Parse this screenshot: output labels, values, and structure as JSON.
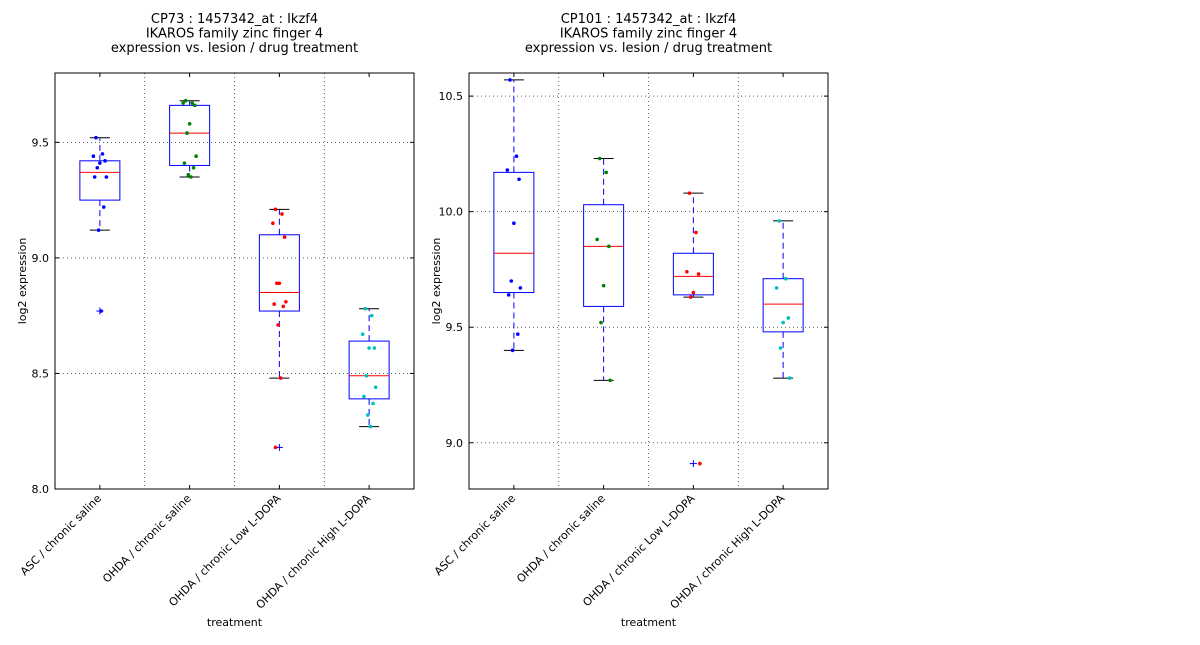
{
  "chart_data": [
    {
      "type": "box",
      "title": [
        "CP73 : 1457342_at : Ikzf4",
        "IKAROS family zinc finger 4",
        "expression vs. lesion / drug treatment"
      ],
      "xlabel": "treatment",
      "ylabel": "log2 expression",
      "ylim": [
        8.0,
        9.8
      ],
      "yticks": [
        "8.0",
        "8.5",
        "9.0",
        "9.5"
      ],
      "grid": true,
      "categories": [
        "ASC / chronic saline",
        "OHDA / chronic saline",
        "OHDA / chronic Low L-DOPA",
        "OHDA / chronic High L-DOPA"
      ],
      "colors": [
        "#0000ff",
        "#008000",
        "#ff0000",
        "#00bfbf"
      ],
      "boxes": [
        {
          "q1": 9.25,
          "median": 9.37,
          "q3": 9.42,
          "whisker_low": 9.12,
          "whisker_high": 9.52,
          "outliers": [
            8.77
          ],
          "points": [
            9.52,
            9.45,
            9.44,
            9.42,
            9.41,
            9.39,
            9.35,
            9.35,
            9.22,
            9.12,
            8.77
          ]
        },
        {
          "q1": 9.4,
          "median": 9.54,
          "q3": 9.66,
          "whisker_low": 9.35,
          "whisker_high": 9.68,
          "outliers": [],
          "points": [
            9.68,
            9.67,
            9.67,
            9.66,
            9.58,
            9.54,
            9.44,
            9.41,
            9.39,
            9.36,
            9.35
          ]
        },
        {
          "q1": 8.77,
          "median": 8.85,
          "q3": 9.1,
          "whisker_low": 8.48,
          "whisker_high": 9.21,
          "outliers": [
            8.18
          ],
          "points": [
            9.21,
            9.19,
            9.15,
            9.09,
            8.89,
            8.89,
            8.81,
            8.8,
            8.79,
            8.71,
            8.48,
            8.18
          ]
        },
        {
          "q1": 8.39,
          "median": 8.49,
          "q3": 8.64,
          "whisker_low": 8.27,
          "whisker_high": 8.78,
          "outliers": [],
          "points": [
            8.78,
            8.75,
            8.67,
            8.61,
            8.61,
            8.49,
            8.44,
            8.4,
            8.37,
            8.32,
            8.27
          ]
        }
      ]
    },
    {
      "type": "box",
      "title": [
        "CP101 : 1457342_at : Ikzf4",
        "IKAROS family zinc finger 4",
        "expression vs. lesion / drug treatment"
      ],
      "xlabel": "treatment",
      "ylabel": "log2 expression",
      "ylim": [
        8.8,
        10.6
      ],
      "yticks": [
        "9.0",
        "9.5",
        "10.0",
        "10.5"
      ],
      "grid": true,
      "categories": [
        "ASC / chronic saline",
        "OHDA / chronic saline",
        "OHDA / chronic Low L-DOPA",
        "OHDA / chronic High L-DOPA"
      ],
      "colors": [
        "#0000ff",
        "#008000",
        "#ff0000",
        "#00bfbf"
      ],
      "boxes": [
        {
          "q1": 9.65,
          "median": 9.82,
          "q3": 10.17,
          "whisker_low": 9.4,
          "whisker_high": 10.57,
          "outliers": [],
          "points": [
            10.57,
            10.24,
            10.18,
            10.14,
            9.95,
            9.7,
            9.67,
            9.64,
            9.47,
            9.4
          ]
        },
        {
          "q1": 9.59,
          "median": 9.85,
          "q3": 10.03,
          "whisker_low": 9.27,
          "whisker_high": 10.23,
          "outliers": [],
          "points": [
            10.23,
            10.17,
            9.88,
            9.85,
            9.68,
            9.52,
            9.27
          ]
        },
        {
          "q1": 9.64,
          "median": 9.72,
          "q3": 9.82,
          "whisker_low": 9.63,
          "whisker_high": 10.08,
          "outliers": [
            8.91
          ],
          "points": [
            10.08,
            9.91,
            9.74,
            9.73,
            9.65,
            9.63,
            8.91
          ]
        },
        {
          "q1": 9.48,
          "median": 9.6,
          "q3": 9.71,
          "whisker_low": 9.28,
          "whisker_high": 9.96,
          "outliers": [],
          "points": [
            9.96,
            9.71,
            9.67,
            9.54,
            9.52,
            9.41,
            9.28
          ]
        }
      ]
    }
  ]
}
